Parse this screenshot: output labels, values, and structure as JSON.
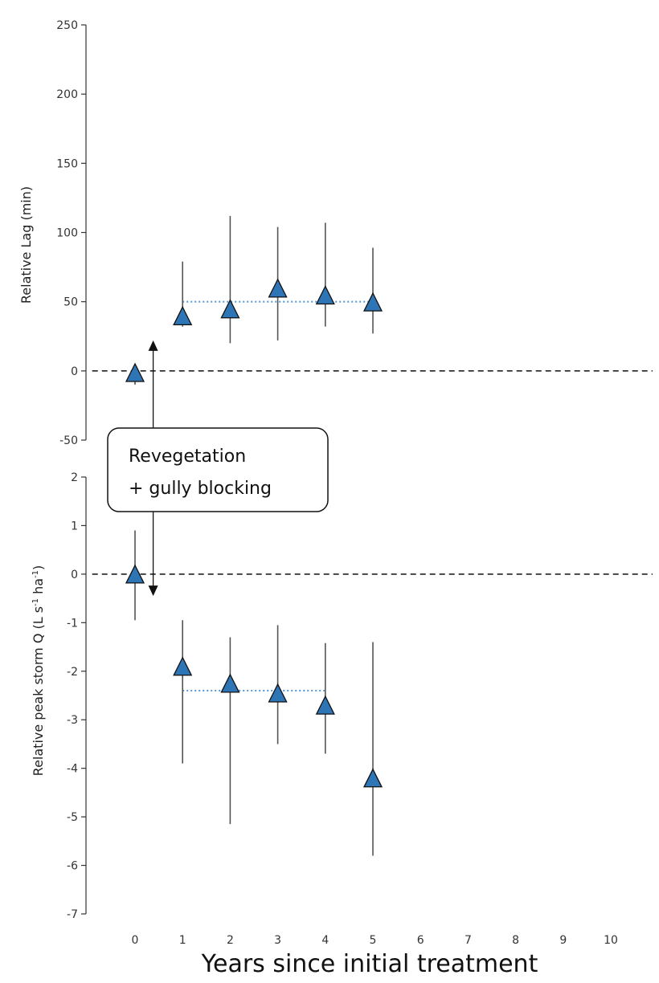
{
  "chart_data": [
    {
      "type": "scatter",
      "ylabel": "Relative Lag (min)",
      "ylim": [
        -50,
        250
      ],
      "yticks": [
        -50,
        0,
        50,
        100,
        150,
        200,
        250
      ],
      "series": [
        {
          "marker": "triangle",
          "color": "#2E75B6",
          "x": [
            0,
            1,
            2,
            3,
            4,
            5
          ],
          "y": [
            -3,
            38,
            43,
            58,
            53,
            48
          ],
          "err_low": [
            -10,
            32,
            20,
            22,
            32,
            27
          ],
          "err_high": [
            2,
            79,
            112,
            104,
            107,
            89
          ]
        }
      ],
      "reference_lines": [
        {
          "style": "dashed",
          "y": 0,
          "x_range": [
            -0.9,
            11
          ]
        },
        {
          "style": "dotted",
          "y": 50,
          "x_range": [
            1,
            5
          ]
        }
      ]
    },
    {
      "type": "scatter",
      "ylabel_main": "Relative peak storm Q (L s",
      "ylabel_sup1": "-1",
      "ylabel_mid": " ha",
      "ylabel_sup2": "-1",
      "ylabel_end": ")",
      "ylim": [
        -7,
        2
      ],
      "yticks": [
        -7,
        -6,
        -5,
        -4,
        -3,
        -2,
        -1,
        0,
        1,
        2
      ],
      "series": [
        {
          "marker": "triangle",
          "color": "#2E75B6",
          "x": [
            0,
            1,
            2,
            3,
            4,
            5
          ],
          "y": [
            -0.05,
            -1.95,
            -2.3,
            -2.5,
            -2.75,
            -4.25
          ],
          "err_low": [
            -0.95,
            -3.9,
            -5.15,
            -3.5,
            -3.7,
            -5.8
          ],
          "err_high": [
            0.9,
            -0.95,
            -1.3,
            -1.05,
            -1.42,
            -1.4
          ]
        }
      ],
      "reference_lines": [
        {
          "style": "dashed",
          "y": 0,
          "x_range": [
            -0.9,
            11
          ]
        },
        {
          "style": "dotted",
          "y": -2.4,
          "x_range": [
            1,
            4
          ]
        }
      ]
    }
  ],
  "x_axis": {
    "ticks": [
      0,
      1,
      2,
      3,
      4,
      5,
      6,
      7,
      8,
      9,
      10
    ],
    "xlim": [
      -1,
      11
    ],
    "xlabel": "Years since initial treatment"
  },
  "annotation": {
    "line1": "Revegetation",
    "line2": "+ gully blocking",
    "x": 0.5
  },
  "colors": {
    "marker_fill": "#2E75B6",
    "marker_edge": "#111111",
    "error_bar": "#555555",
    "dotted_line": "#5B9BD5",
    "dashed_line": "#222222"
  }
}
